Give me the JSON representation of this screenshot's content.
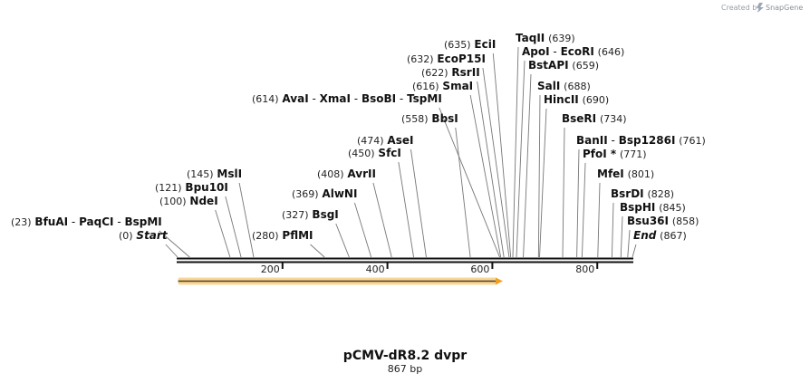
{
  "credit": {
    "text": "Created by",
    "brand": "SnapGene"
  },
  "map": {
    "name": "pCMV-dR8.2 dvpr",
    "length_label": "867 bp",
    "length": 867,
    "feature": {
      "name": "arrow-feature",
      "start": 1,
      "end": 620,
      "direction": "forward",
      "color": "#f0a020"
    }
  },
  "ticks": [
    {
      "value": 200,
      "label": "200"
    },
    {
      "value": 400,
      "label": "400"
    },
    {
      "value": 600,
      "label": "600"
    },
    {
      "value": 800,
      "label": "800"
    }
  ],
  "sites": [
    {
      "pos": 0,
      "pos_label": "(0)",
      "names": [
        "Start"
      ],
      "italic": true
    },
    {
      "pos": 23,
      "pos_label": "(23)",
      "names": [
        "BfuAI",
        "PaqCI",
        "BspMI"
      ]
    },
    {
      "pos": 100,
      "pos_label": "(100)",
      "names": [
        "NdeI"
      ]
    },
    {
      "pos": 121,
      "pos_label": "(121)",
      "names": [
        "Bpu10I"
      ]
    },
    {
      "pos": 145,
      "pos_label": "(145)",
      "names": [
        "MslI"
      ]
    },
    {
      "pos": 280,
      "pos_label": "(280)",
      "names": [
        "PflMI"
      ]
    },
    {
      "pos": 327,
      "pos_label": "(327)",
      "names": [
        "BsgI"
      ]
    },
    {
      "pos": 369,
      "pos_label": "(369)",
      "names": [
        "AlwNI"
      ]
    },
    {
      "pos": 408,
      "pos_label": "(408)",
      "names": [
        "AvrII"
      ]
    },
    {
      "pos": 450,
      "pos_label": "(450)",
      "names": [
        "SfcI"
      ]
    },
    {
      "pos": 474,
      "pos_label": "(474)",
      "names": [
        "AseI"
      ]
    },
    {
      "pos": 558,
      "pos_label": "(558)",
      "names": [
        "BbsI"
      ]
    },
    {
      "pos": 614,
      "pos_label": "(614)",
      "names": [
        "AvaI",
        "XmaI",
        "BsoBI",
        "TspMI"
      ]
    },
    {
      "pos": 616,
      "pos_label": "(616)",
      "names": [
        "SmaI"
      ]
    },
    {
      "pos": 622,
      "pos_label": "(622)",
      "names": [
        "RsrII"
      ]
    },
    {
      "pos": 632,
      "pos_label": "(632)",
      "names": [
        "EcoP15I"
      ]
    },
    {
      "pos": 635,
      "pos_label": "(635)",
      "names": [
        "EciI"
      ]
    },
    {
      "pos": 639,
      "pos_label": "(639)",
      "names": [
        "TaqII"
      ]
    },
    {
      "pos": 646,
      "pos_label": "(646)",
      "names": [
        "ApoI",
        "EcoRI"
      ]
    },
    {
      "pos": 659,
      "pos_label": "(659)",
      "names": [
        "BstAPI"
      ]
    },
    {
      "pos": 688,
      "pos_label": "(688)",
      "names": [
        "SalI"
      ]
    },
    {
      "pos": 690,
      "pos_label": "(690)",
      "names": [
        "HincII"
      ]
    },
    {
      "pos": 734,
      "pos_label": "(734)",
      "names": [
        "BseRI"
      ]
    },
    {
      "pos": 761,
      "pos_label": "(761)",
      "names": [
        "BanII",
        "Bsp1286I"
      ]
    },
    {
      "pos": 771,
      "pos_label": "(771)",
      "names": [
        "PfoI *"
      ]
    },
    {
      "pos": 801,
      "pos_label": "(801)",
      "names": [
        "MfeI"
      ]
    },
    {
      "pos": 828,
      "pos_label": "(828)",
      "names": [
        "BsrDI"
      ]
    },
    {
      "pos": 845,
      "pos_label": "(845)",
      "names": [
        "BspHI"
      ]
    },
    {
      "pos": 858,
      "pos_label": "(858)",
      "names": [
        "Bsu36I"
      ]
    },
    {
      "pos": 867,
      "pos_label": "(867)",
      "names": [
        "End"
      ],
      "italic": true
    }
  ]
}
